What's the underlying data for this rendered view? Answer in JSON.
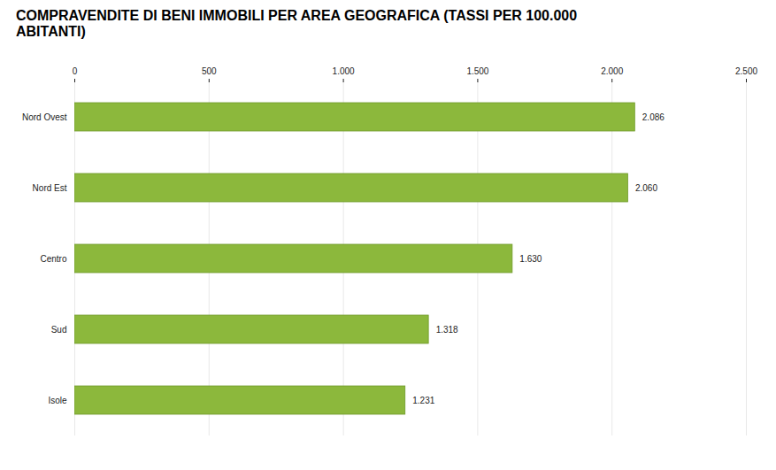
{
  "chart_data": {
    "type": "bar",
    "title": "COMPRAVENDITE DI BENI IMMOBILI PER AREA GEOGRAFICA (TASSI PER 100.000 ABITANTI)",
    "orientation": "horizontal",
    "categories": [
      "Nord Ovest",
      "Nord Est",
      "Centro",
      "Sud",
      "Isole"
    ],
    "values": [
      2086,
      2060,
      1630,
      1318,
      1231
    ],
    "value_labels": [
      "2.086",
      "2.060",
      "1.630",
      "1.318",
      "1.231"
    ],
    "data_labels": true,
    "color": "#8cb83c",
    "xlim": [
      0,
      2500
    ],
    "xticks": [
      0,
      500,
      {
        "value": 1000,
        "label": "1.000"
      },
      {
        "value": 1500,
        "label": "1.500"
      },
      {
        "value": 2000,
        "label": "2.000"
      },
      {
        "value": 2500,
        "label": "2.500"
      }
    ],
    "grid": true
  }
}
